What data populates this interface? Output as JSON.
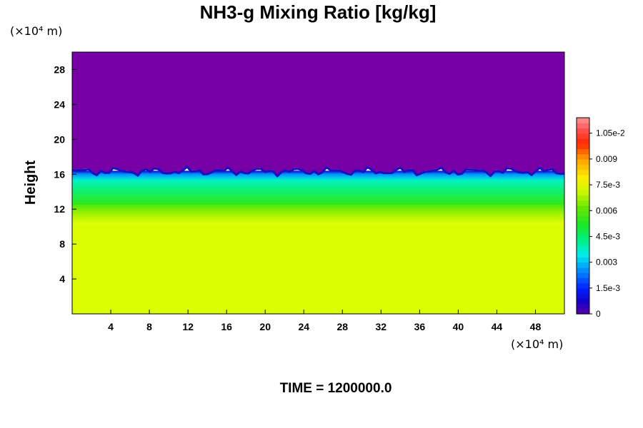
{
  "chart_data": {
    "type": "heatmap",
    "title": "NH3-g Mixing Ratio [kg/kg]",
    "ylabel": "Height",
    "xunit": "(×10⁴ m)",
    "yunit": "(×10⁴ m)",
    "xlim": [
      0,
      51
    ],
    "ylim": [
      0,
      30
    ],
    "xticks": [
      "4",
      "8",
      "12",
      "16",
      "20",
      "24",
      "28",
      "32",
      "36",
      "40",
      "44",
      "48"
    ],
    "yticks": [
      "4",
      "8",
      "12",
      "16",
      "20",
      "24",
      "28"
    ],
    "colorbar": {
      "min": 0,
      "max": 0.0114,
      "ticks": [
        {
          "value": 0,
          "label": "0"
        },
        {
          "value": 0.0015,
          "label": "1.5e-3"
        },
        {
          "value": 0.003,
          "label": "0.003"
        },
        {
          "value": 0.0045,
          "label": "4.5e-3"
        },
        {
          "value": 0.006,
          "label": "0.006"
        },
        {
          "value": 0.0075,
          "label": "7.5e-3"
        },
        {
          "value": 0.009,
          "label": "0.009"
        },
        {
          "value": 0.0105,
          "label": "1.05e-2"
        }
      ]
    },
    "profile": [
      {
        "height": 0,
        "value": 0.0079
      },
      {
        "height": 10.5,
        "value": 0.0078
      },
      {
        "height": 11.8,
        "value": 0.0066
      },
      {
        "height": 13.2,
        "value": 0.0055
      },
      {
        "height": 14.8,
        "value": 0.0046
      },
      {
        "height": 16.0,
        "value": 0.003
      },
      {
        "height": 16.4,
        "value": 0.001
      },
      {
        "height": 16.7,
        "value": 0.0
      },
      {
        "height": 30,
        "value": 0.0
      }
    ]
  },
  "footer": {
    "time_label": "TIME = 1200000.0"
  }
}
